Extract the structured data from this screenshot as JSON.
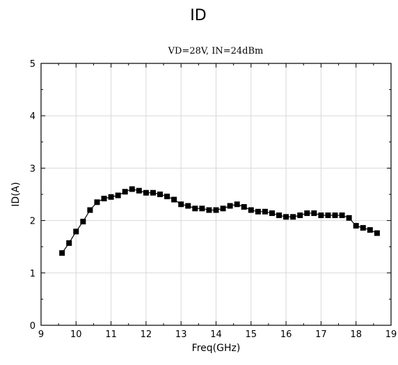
{
  "header": {
    "title": "ID"
  },
  "chart_data": {
    "type": "line",
    "title": "VD=28V, IN=24dBm",
    "xlabel": "Freq(GHz)",
    "ylabel": "ID(A)",
    "xlim": [
      9,
      19
    ],
    "ylim": [
      0,
      5
    ],
    "x_ticks": [
      "9",
      "10",
      "11",
      "12",
      "13",
      "14",
      "15",
      "16",
      "17",
      "18",
      "19"
    ],
    "y_ticks": [
      "0",
      "1",
      "2",
      "3",
      "4",
      "5"
    ],
    "grid": true,
    "series": [
      {
        "x": [
          9.6,
          9.8,
          10.0,
          10.2,
          10.4,
          10.6,
          10.8,
          11.0,
          11.2,
          11.4,
          11.6,
          11.8,
          12.0,
          12.2,
          12.4,
          12.6,
          12.8,
          13.0,
          13.2,
          13.4,
          13.6,
          13.8,
          14.0,
          14.2,
          14.4,
          14.6,
          14.8,
          15.0,
          15.2,
          15.4,
          15.6,
          15.8,
          16.0,
          16.2,
          16.4,
          16.6,
          16.8,
          17.0,
          17.2,
          17.4,
          17.6,
          17.8,
          18.0,
          18.2,
          18.4,
          18.6
        ],
        "values": [
          1.38,
          1.57,
          1.79,
          1.98,
          2.2,
          2.35,
          2.42,
          2.45,
          2.48,
          2.55,
          2.6,
          2.57,
          2.53,
          2.53,
          2.5,
          2.46,
          2.4,
          2.31,
          2.28,
          2.23,
          2.23,
          2.2,
          2.2,
          2.23,
          2.28,
          2.31,
          2.26,
          2.2,
          2.17,
          2.17,
          2.14,
          2.1,
          2.07,
          2.07,
          2.1,
          2.14,
          2.14,
          2.1,
          2.1,
          2.1,
          2.1,
          2.05,
          1.9,
          1.86,
          1.82,
          1.76
        ]
      }
    ]
  }
}
